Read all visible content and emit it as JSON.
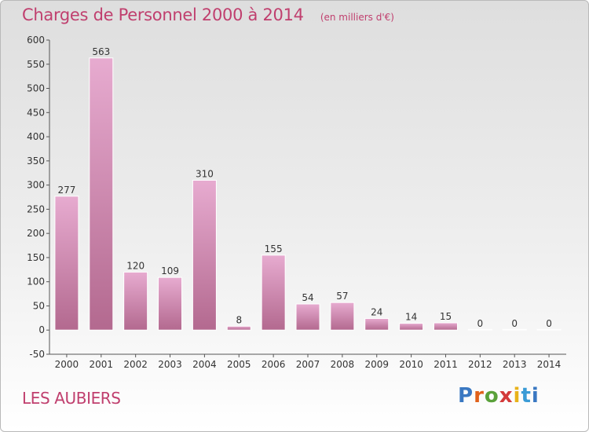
{
  "title": "Charges de Personnel 2000 à 2014",
  "subtitle": "(en milliers d'€)",
  "commune": "LES AUBIERS",
  "logo": {
    "text": "Proxiti"
  },
  "colors": {
    "accent": "#c03f6e",
    "bar_light": "#e7abd0",
    "bar_dark": "#b3698f"
  },
  "chart_data": {
    "type": "bar",
    "categories": [
      "2000",
      "2001",
      "2002",
      "2003",
      "2004",
      "2005",
      "2006",
      "2007",
      "2008",
      "2009",
      "2010",
      "2011",
      "2012",
      "2013",
      "2014"
    ],
    "values": [
      277,
      563,
      120,
      109,
      310,
      8,
      155,
      54,
      57,
      24,
      14,
      15,
      0,
      0,
      0
    ],
    "data_labels": [
      "277",
      "563",
      "120",
      "109",
      "310",
      "8",
      "155",
      "54",
      "57",
      "24",
      "14",
      "15",
      "0",
      "0",
      "0"
    ],
    "ylim": [
      -50,
      600
    ],
    "yticks": [
      -50,
      0,
      50,
      100,
      150,
      200,
      250,
      300,
      350,
      400,
      450,
      500,
      550,
      600
    ],
    "grid": false,
    "xlabel": "",
    "ylabel": ""
  }
}
